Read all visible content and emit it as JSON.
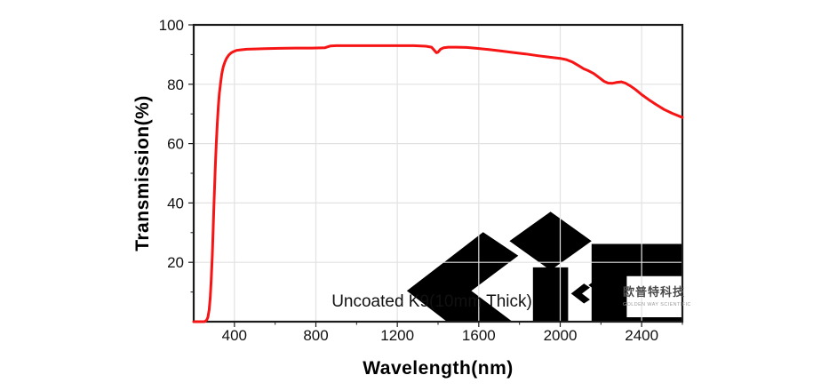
{
  "annotation": "Uncoated K9(10mm Thick)",
  "logo": {
    "cn": "欧普特科技",
    "en": "GOLDEN WAY SCIENTIFIC",
    "accent_red": "#cf2127"
  },
  "colors": {
    "curve": "#f61414",
    "grid": "#e2e2e2",
    "frame": "#1c1c1c",
    "tick": "#1c1c1c",
    "watermark_pink": "#f7e9e9",
    "watermark_gray": "#efecec"
  },
  "chart_data": {
    "type": "line",
    "title": "Uncoated K9(10mm Thick)",
    "xlabel": "Wavelength(nm)",
    "ylabel": "Transmission(%)",
    "xlim": [
      200,
      2600
    ],
    "ylim": [
      0,
      100
    ],
    "x_major_ticks": [
      400,
      800,
      1200,
      1600,
      2000,
      2400
    ],
    "x_minor_ticks": [
      600,
      1000,
      1400,
      1800,
      2200,
      2600
    ],
    "y_major_ticks": [
      20,
      40,
      60,
      80,
      100
    ],
    "y_minor_ticks": [
      10,
      30,
      50,
      70,
      90
    ],
    "grid": "major-both",
    "legend": "none",
    "series": [
      {
        "name": "Uncoated K9 10mm transmission",
        "color": "#f61414",
        "points": [
          [
            200,
            0
          ],
          [
            252,
            0
          ],
          [
            258,
            0.2
          ],
          [
            264,
            0.6
          ],
          [
            270,
            1.5
          ],
          [
            276,
            4
          ],
          [
            281,
            8
          ],
          [
            286,
            14
          ],
          [
            291,
            22
          ],
          [
            296,
            32
          ],
          [
            301,
            42
          ],
          [
            306,
            52
          ],
          [
            311,
            60
          ],
          [
            316,
            67
          ],
          [
            321,
            72.5
          ],
          [
            326,
            77
          ],
          [
            332,
            80.5
          ],
          [
            338,
            83.5
          ],
          [
            345,
            85.8
          ],
          [
            353,
            87.5
          ],
          [
            362,
            88.8
          ],
          [
            372,
            89.8
          ],
          [
            383,
            90.5
          ],
          [
            395,
            91
          ],
          [
            410,
            91.4
          ],
          [
            430,
            91.6
          ],
          [
            460,
            91.8
          ],
          [
            500,
            91.9
          ],
          [
            550,
            92
          ],
          [
            620,
            92.1
          ],
          [
            700,
            92.2
          ],
          [
            780,
            92.2
          ],
          [
            845,
            92.3
          ],
          [
            858,
            92.6
          ],
          [
            872,
            92.9
          ],
          [
            900,
            93
          ],
          [
            1000,
            93
          ],
          [
            1100,
            93
          ],
          [
            1200,
            93
          ],
          [
            1280,
            93
          ],
          [
            1340,
            92.8
          ],
          [
            1368,
            92.5
          ],
          [
            1381,
            91.5
          ],
          [
            1392,
            90.6
          ],
          [
            1400,
            90.8
          ],
          [
            1412,
            91.8
          ],
          [
            1428,
            92.3
          ],
          [
            1450,
            92.5
          ],
          [
            1490,
            92.5
          ],
          [
            1540,
            92.4
          ],
          [
            1590,
            92.1
          ],
          [
            1650,
            91.7
          ],
          [
            1710,
            91.2
          ],
          [
            1770,
            90.7
          ],
          [
            1830,
            90.2
          ],
          [
            1890,
            89.6
          ],
          [
            1950,
            89.1
          ],
          [
            2000,
            88.7
          ],
          [
            2030,
            88.3
          ],
          [
            2060,
            87.5
          ],
          [
            2090,
            86.3
          ],
          [
            2115,
            85.2
          ],
          [
            2140,
            84.5
          ],
          [
            2165,
            83.6
          ],
          [
            2190,
            82.3
          ],
          [
            2215,
            81
          ],
          [
            2235,
            80.4
          ],
          [
            2255,
            80.3
          ],
          [
            2275,
            80.6
          ],
          [
            2300,
            80.8
          ],
          [
            2320,
            80.4
          ],
          [
            2345,
            79.4
          ],
          [
            2370,
            78.2
          ],
          [
            2400,
            76.5
          ],
          [
            2435,
            74.8
          ],
          [
            2470,
            73.2
          ],
          [
            2510,
            71.5
          ],
          [
            2550,
            70.2
          ],
          [
            2600,
            68.8
          ]
        ]
      }
    ]
  }
}
